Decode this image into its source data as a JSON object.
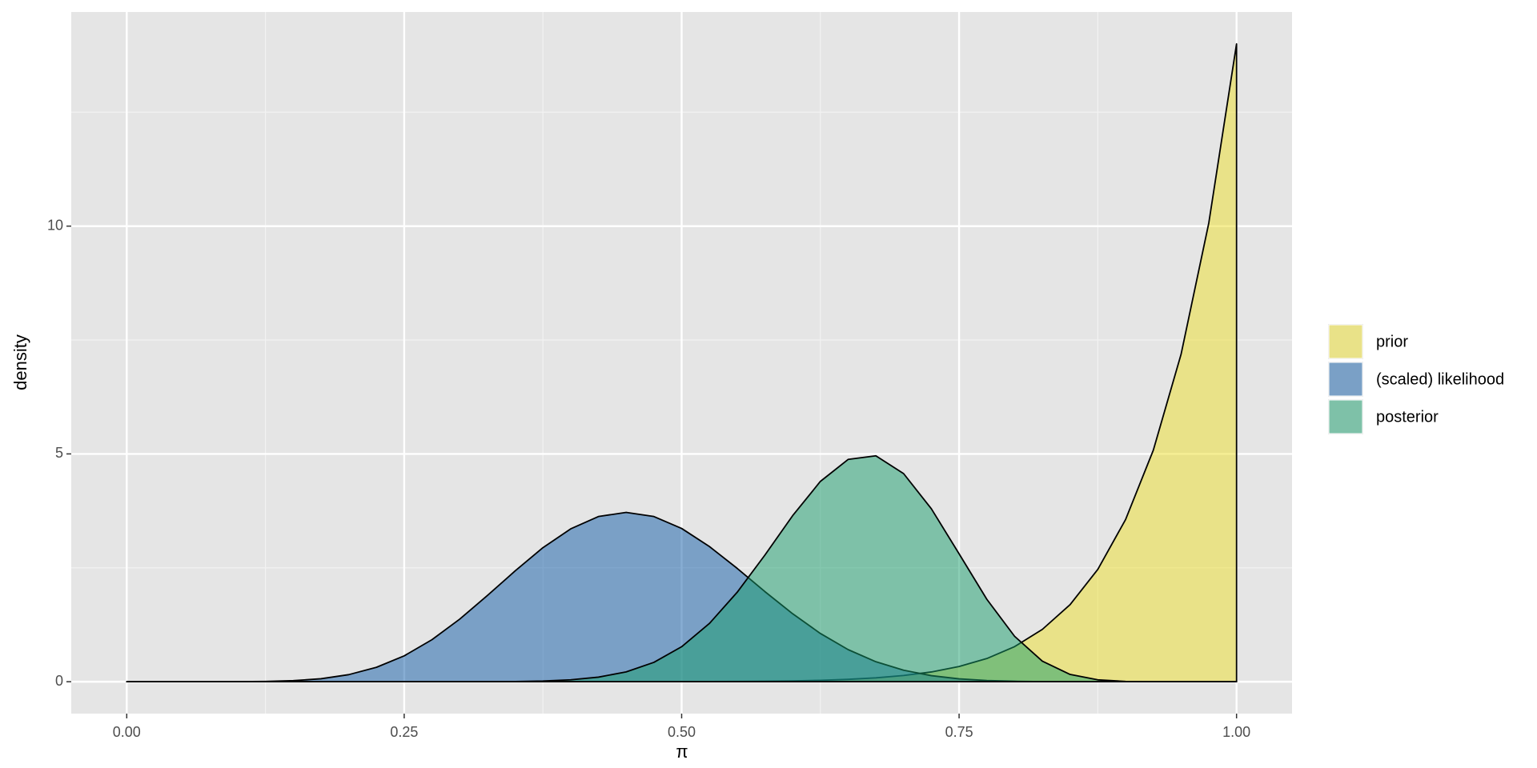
{
  "chart_data": {
    "type": "area",
    "x_label": "π",
    "y_label": "density",
    "x": [
      0,
      0.025,
      0.05,
      0.075,
      0.1,
      0.125,
      0.15,
      0.175,
      0.2,
      0.225,
      0.25,
      0.275,
      0.3,
      0.325,
      0.35,
      0.375,
      0.4,
      0.425,
      0.45,
      0.475,
      0.5,
      0.525,
      0.55,
      0.575,
      0.6,
      0.625,
      0.65,
      0.675,
      0.7,
      0.725,
      0.75,
      0.775,
      0.8,
      0.825,
      0.85,
      0.875,
      0.9,
      0.925,
      0.95,
      0.975,
      1
    ],
    "series": [
      {
        "name": "prior",
        "color": "#eddf2b",
        "values": [
          0,
          0,
          0,
          0,
          0,
          0,
          0,
          0,
          0,
          0,
          0,
          0,
          0,
          0,
          0,
          0,
          0,
          0,
          0,
          0.001,
          0.002,
          0.003,
          0.006,
          0.011,
          0.018,
          0.031,
          0.052,
          0.085,
          0.136,
          0.214,
          0.333,
          0.509,
          0.77,
          1.148,
          1.692,
          2.467,
          3.559,
          5.082,
          7.186,
          10.07,
          14
        ]
      },
      {
        "name": "(scaled) likelihood",
        "color": "#0f5ca8",
        "values": [
          0,
          0,
          0,
          0.0001,
          0.001,
          0.006,
          0.023,
          0.065,
          0.155,
          0.316,
          0.568,
          0.922,
          1.373,
          1.893,
          2.433,
          2.942,
          3.355,
          3.626,
          3.717,
          3.626,
          3.364,
          2.968,
          2.489,
          1.978,
          1.492,
          1.059,
          0.705,
          0.439,
          0.252,
          0.133,
          0.063,
          0.027,
          0.01,
          0.003,
          0.001,
          0,
          0,
          0,
          0,
          0,
          0
        ]
      },
      {
        "name": "posterior",
        "color": "#179e6b",
        "values": [
          0,
          0,
          0,
          0,
          0,
          0,
          0,
          0,
          0,
          0,
          0,
          0,
          0.0004,
          0.002,
          0.005,
          0.016,
          0.042,
          0.1,
          0.216,
          0.425,
          0.768,
          1.278,
          1.962,
          2.779,
          3.644,
          4.397,
          4.879,
          4.958,
          4.568,
          3.796,
          2.807,
          1.809,
          0.997,
          0.452,
          0.16,
          0.041,
          0.007,
          0.0004,
          0,
          0,
          0
        ]
      }
    ],
    "xlim": [
      -0.05,
      1.05
    ],
    "xticks": [
      {
        "value": 0,
        "label": "0.00"
      },
      0.25,
      {
        "value": 0.5,
        "label": "0.50"
      },
      0.75,
      {
        "value": 1,
        "label": "1.00"
      }
    ],
    "ylim": [
      -0.7,
      14.7
    ],
    "yticks": [
      0,
      5,
      10
    ],
    "grid": true,
    "legend": "right"
  }
}
